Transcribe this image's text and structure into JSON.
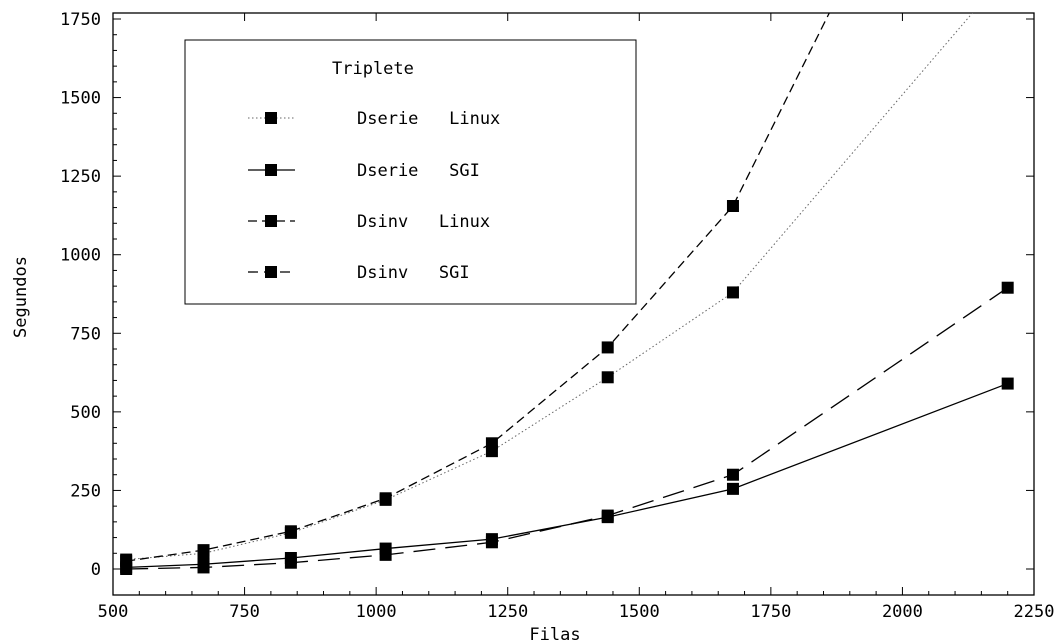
{
  "chart_data": {
    "type": "line",
    "xlabel": "Filas",
    "ylabel": "Segundos",
    "xlim": [
      500,
      2250
    ],
    "ylim": [
      -30,
      1760
    ],
    "xticks": [
      500,
      750,
      1000,
      1250,
      1500,
      1750,
      2000,
      2250
    ],
    "yticks": [
      0,
      250,
      500,
      750,
      1000,
      1250,
      1500,
      1750
    ],
    "grid": false,
    "legend": {
      "title": "Triplete",
      "placement": "top-left"
    },
    "series": [
      {
        "name": "Dserie   Linux",
        "line_style": "dotted",
        "x": [
          525,
          672,
          838,
          1018,
          1220,
          1440,
          1678,
          2200
        ],
        "y": [
          30,
          50,
          115,
          220,
          375,
          610,
          880,
          1900
        ],
        "markers": [
          true,
          true,
          true,
          true,
          true,
          true,
          true,
          false
        ]
      },
      {
        "name": "Dserie   SGI",
        "line_style": "solid",
        "x": [
          525,
          672,
          838,
          1018,
          1220,
          1440,
          1678,
          2200
        ],
        "y": [
          5,
          15,
          35,
          65,
          95,
          165,
          255,
          590
        ],
        "markers": [
          true,
          true,
          true,
          true,
          true,
          true,
          true,
          true
        ]
      },
      {
        "name": "Dsinv   Linux",
        "line_style": "short-dash",
        "x": [
          525,
          672,
          838,
          1018,
          1220,
          1440,
          1678,
          1900
        ],
        "y": [
          25,
          60,
          120,
          225,
          400,
          705,
          1155,
          1900
        ],
        "markers": [
          true,
          true,
          true,
          true,
          true,
          true,
          true,
          false
        ]
      },
      {
        "name": "Dsinv   SGI",
        "line_style": "long-dash",
        "x": [
          525,
          672,
          838,
          1018,
          1220,
          1440,
          1678,
          2200
        ],
        "y": [
          0,
          5,
          20,
          45,
          85,
          170,
          300,
          895
        ],
        "markers": [
          true,
          true,
          true,
          true,
          true,
          true,
          true,
          true
        ]
      }
    ]
  }
}
